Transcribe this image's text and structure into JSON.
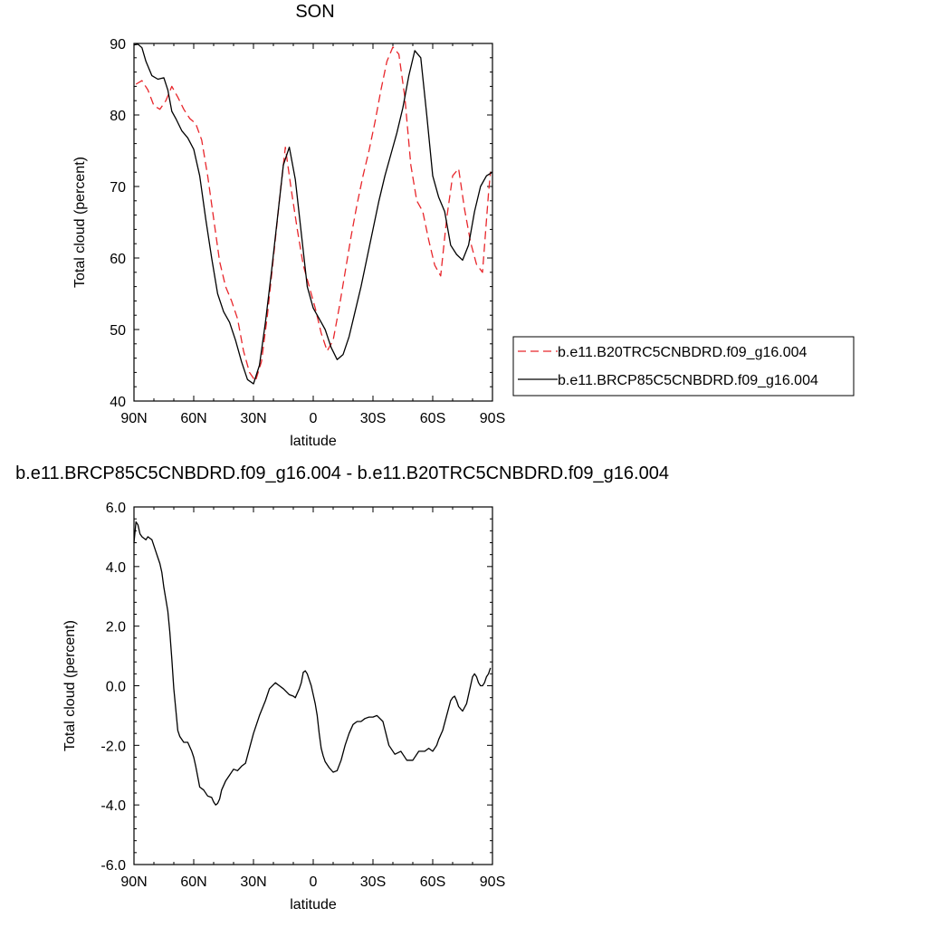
{
  "colors": {
    "series_1": "#e8262b",
    "series_2": "#000000",
    "axis": "#000000"
  },
  "chart_data": [
    {
      "type": "line",
      "title": "SON",
      "xlabel": "latitude",
      "ylabel": "Total cloud (percent)",
      "xlim": [
        90,
        -90
      ],
      "ylim": [
        40,
        90
      ],
      "xticks": [
        90,
        60,
        30,
        0,
        -30,
        -60,
        -90
      ],
      "xtick_labels": [
        "90N",
        "60N",
        "30N",
        "0",
        "30S",
        "60S",
        "90S"
      ],
      "yticks": [
        40,
        50,
        60,
        70,
        80,
        90
      ],
      "ytick_labels": [
        "40",
        "50",
        "60",
        "70",
        "80",
        "90"
      ],
      "grid": false,
      "legend": "right",
      "series": [
        {
          "name": "b.e11.B20TRC5CNBDRD.f09_g16.004",
          "style": "dashed",
          "x": [
            89,
            86,
            83,
            80,
            77,
            74,
            71,
            68,
            65,
            62,
            59,
            56,
            53,
            50,
            47,
            44,
            41,
            38,
            35,
            32,
            29,
            26,
            23,
            20,
            17,
            14,
            11,
            8,
            5,
            2,
            -1,
            -4,
            -7,
            -10,
            -13,
            -16,
            -19,
            -22,
            -25,
            -28,
            -31,
            -34,
            -37,
            -40,
            -43,
            -46,
            -49,
            -52,
            -55,
            -58,
            -61,
            -64,
            -67,
            -70,
            -73,
            -76,
            -79,
            -82,
            -85,
            -88,
            -89
          ],
          "values": [
            84.3,
            84.8,
            83.5,
            81.3,
            80.8,
            82.0,
            84.0,
            82.5,
            80.8,
            79.5,
            78.8,
            76.5,
            71.5,
            65.5,
            59.5,
            56.0,
            54.0,
            51.5,
            47.0,
            44.0,
            42.8,
            45.5,
            52.0,
            60.0,
            68.0,
            75.5,
            69.5,
            64.0,
            59.0,
            56.0,
            53.0,
            49.5,
            47.0,
            48.5,
            53.0,
            58.0,
            63.0,
            67.5,
            71.5,
            75.0,
            79.0,
            83.5,
            87.5,
            89.5,
            88.5,
            82.5,
            73.0,
            68.0,
            66.5,
            62.5,
            59.0,
            57.5,
            65.5,
            71.5,
            72.5,
            66.8,
            62.2,
            59.1,
            58.0,
            69.0,
            72.0
          ]
        },
        {
          "name": "b.e11.BRCP85C5CNBDRD.f09_g16.004",
          "style": "solid",
          "x": [
            90,
            88,
            86,
            84,
            81,
            78,
            75,
            73,
            71,
            69,
            66,
            63,
            60,
            57,
            54,
            51,
            48,
            45,
            42,
            39,
            36,
            33,
            30,
            27,
            24,
            21,
            18,
            15,
            12,
            9,
            6,
            3,
            0,
            -3,
            -6,
            -9,
            -12,
            -15,
            -18,
            -21,
            -24,
            -27,
            -30,
            -33,
            -36,
            -39,
            -42,
            -45,
            -48,
            -51,
            -54,
            -57,
            -60,
            -63,
            -66,
            -69,
            -72,
            -75,
            -78,
            -81,
            -84,
            -87,
            -90
          ],
          "values": [
            89.8,
            89.9,
            89.4,
            87.5,
            85.5,
            85.0,
            85.2,
            83.5,
            80.5,
            79.5,
            77.8,
            76.8,
            75.2,
            71.5,
            65.5,
            60.0,
            55.0,
            52.5,
            51.0,
            48.5,
            45.5,
            43.0,
            42.4,
            45.0,
            51.0,
            58.0,
            65.5,
            73.0,
            75.5,
            71.0,
            63.5,
            56.0,
            53.0,
            51.5,
            50.0,
            47.5,
            45.8,
            46.5,
            49.0,
            52.5,
            56.0,
            60.0,
            64.0,
            68.0,
            71.5,
            74.5,
            77.5,
            81.0,
            85.5,
            89.0,
            88.0,
            80.0,
            71.5,
            68.5,
            66.5,
            61.8,
            60.5,
            59.7,
            61.8,
            66.5,
            70.0,
            71.5,
            72.0
          ]
        }
      ]
    },
    {
      "type": "line",
      "title": "b.e11.BRCP85C5CNBDRD.f09_g16.004 - b.e11.B20TRC5CNBDRD.f09_g16.004",
      "xlabel": "latitude",
      "ylabel": "Total cloud (percent)",
      "xlim": [
        90,
        -90
      ],
      "ylim": [
        -6,
        6
      ],
      "xticks": [
        90,
        60,
        30,
        0,
        -30,
        -60,
        -90
      ],
      "xtick_labels": [
        "90N",
        "60N",
        "30N",
        "0",
        "30S",
        "60S",
        "90S"
      ],
      "yticks": [
        -6,
        -4,
        -2,
        0,
        2,
        4,
        6
      ],
      "ytick_labels": [
        "-6.0",
        "-4.0",
        "-2.0",
        "0.0",
        "2.0",
        "4.0",
        "6.0"
      ],
      "grid": false,
      "series": [
        {
          "style": "solid",
          "x": [
            90,
            89,
            88,
            87,
            86,
            85,
            84,
            83,
            82,
            81,
            80,
            79,
            78,
            77,
            76,
            75,
            74,
            73,
            72,
            71,
            70,
            69,
            68,
            67,
            65,
            63,
            61,
            60,
            59,
            57,
            55,
            53,
            51,
            50,
            49,
            48,
            47,
            46,
            44,
            42,
            40,
            38,
            36,
            34,
            32,
            30,
            27,
            24,
            22,
            19,
            17,
            15,
            12,
            10,
            9,
            7,
            6,
            5,
            4,
            3,
            1,
            0,
            -1,
            -2,
            -3,
            -4,
            -5,
            -6,
            -8,
            -10,
            -12,
            -14,
            -16,
            -18,
            -20,
            -22,
            -24,
            -26,
            -28,
            -30,
            -32,
            -35,
            -38,
            -41,
            -44,
            -45,
            -47,
            -50,
            -53,
            -56,
            -58,
            -60,
            -62,
            -63,
            -65,
            -67,
            -69,
            -70,
            -71,
            -72,
            -73,
            -75,
            -77,
            -79,
            -80,
            -81,
            -82,
            -83,
            -84,
            -85,
            -86,
            -87,
            -88,
            -89
          ],
          "values": [
            4.8,
            5.5,
            5.4,
            5.1,
            5.0,
            4.95,
            4.9,
            5.0,
            4.95,
            4.9,
            4.7,
            4.5,
            4.3,
            4.1,
            3.8,
            3.3,
            2.9,
            2.5,
            1.8,
            0.9,
            -0.1,
            -0.8,
            -1.5,
            -1.7,
            -1.9,
            -1.9,
            -2.2,
            -2.4,
            -2.7,
            -3.4,
            -3.5,
            -3.7,
            -3.75,
            -3.9,
            -4.0,
            -3.95,
            -3.8,
            -3.5,
            -3.2,
            -3.0,
            -2.8,
            -2.85,
            -2.7,
            -2.6,
            -2.1,
            -1.6,
            -1.0,
            -0.5,
            -0.1,
            0.1,
            0.0,
            -0.1,
            -0.3,
            -0.35,
            -0.4,
            -0.1,
            0.1,
            0.45,
            0.5,
            0.4,
            0.0,
            -0.3,
            -0.6,
            -1.0,
            -1.6,
            -2.1,
            -2.35,
            -2.55,
            -2.75,
            -2.9,
            -2.85,
            -2.5,
            -2.0,
            -1.6,
            -1.3,
            -1.2,
            -1.2,
            -1.1,
            -1.05,
            -1.05,
            -1.0,
            -1.2,
            -2.0,
            -2.3,
            -2.2,
            -2.3,
            -2.5,
            -2.5,
            -2.2,
            -2.2,
            -2.1,
            -2.2,
            -2.0,
            -1.8,
            -1.5,
            -1.0,
            -0.5,
            -0.4,
            -0.35,
            -0.5,
            -0.7,
            -0.85,
            -0.6,
            0.0,
            0.3,
            0.4,
            0.3,
            0.1,
            0.0,
            0.0,
            0.1,
            0.3,
            0.4,
            0.6
          ]
        }
      ]
    }
  ]
}
